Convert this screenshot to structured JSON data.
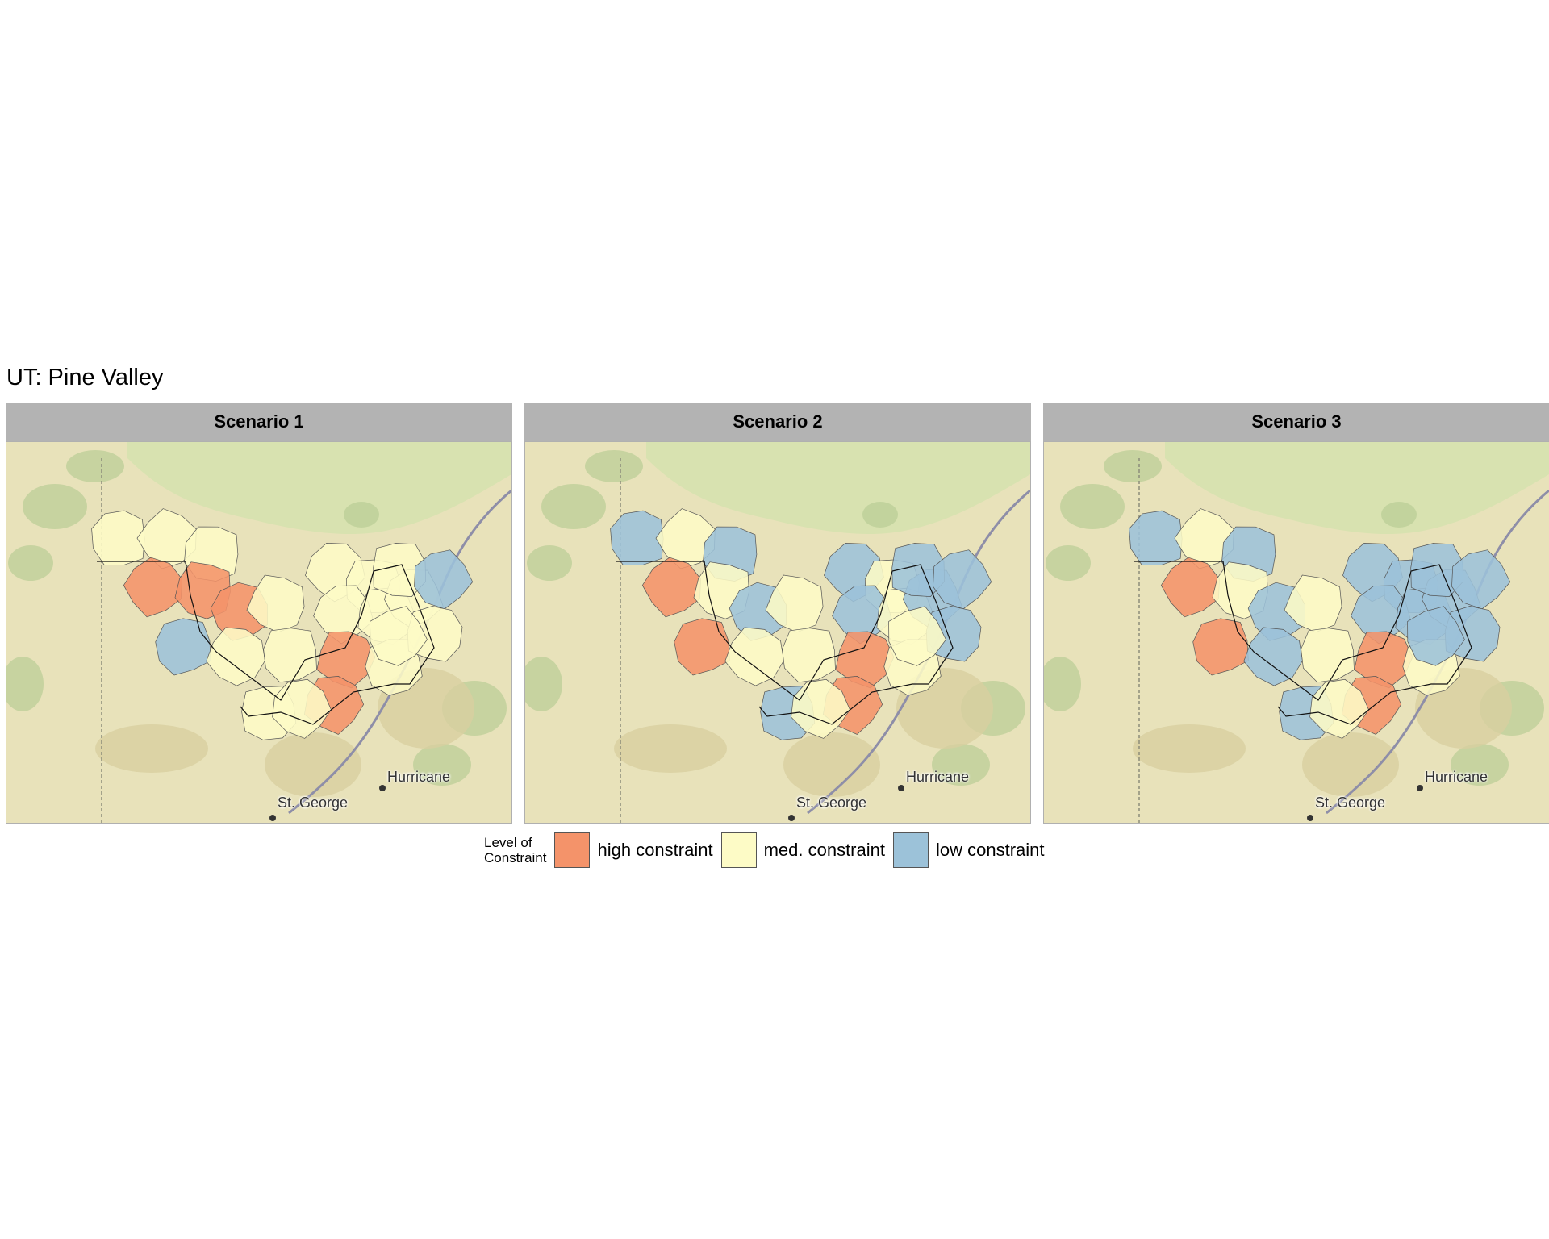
{
  "title": "UT: Pine Valley",
  "panels": [
    {
      "label": "Scenario 1",
      "cells": [
        "m",
        "m",
        "m",
        "h",
        "h",
        "h",
        "m",
        "b",
        "m",
        "m",
        "m",
        "m",
        "m",
        "m",
        "m",
        "h",
        "m",
        "h",
        "m",
        "m",
        "m",
        "b",
        "m",
        "m"
      ]
    },
    {
      "label": "Scenario 2",
      "cells": [
        "b",
        "m",
        "b",
        "h",
        "m",
        "b",
        "m",
        "h",
        "m",
        "m",
        "b",
        "m",
        "b",
        "m",
        "b",
        "h",
        "m",
        "h",
        "b",
        "m",
        "b",
        "b",
        "b",
        "m"
      ]
    },
    {
      "label": "Scenario 3",
      "cells": [
        "b",
        "m",
        "b",
        "h",
        "m",
        "b",
        "m",
        "h",
        "b",
        "m",
        "b",
        "b",
        "b",
        "b",
        "b",
        "h",
        "m",
        "h",
        "b",
        "m",
        "b",
        "b",
        "b",
        "b"
      ]
    }
  ],
  "places": {
    "town1": "Hurricane",
    "town2": "St. George"
  },
  "legend": {
    "title_line1": "Level of",
    "title_line2": "Constraint",
    "items": [
      {
        "label": "high constraint",
        "color": "#f4936a"
      },
      {
        "label": "med. constraint",
        "color": "#fdfbc6"
      },
      {
        "label": "low constraint",
        "color": "#9cc2d9"
      }
    ]
  },
  "colors": {
    "h": "#f4936a",
    "m": "#fdfbc6",
    "b": "#9cc2d9"
  }
}
